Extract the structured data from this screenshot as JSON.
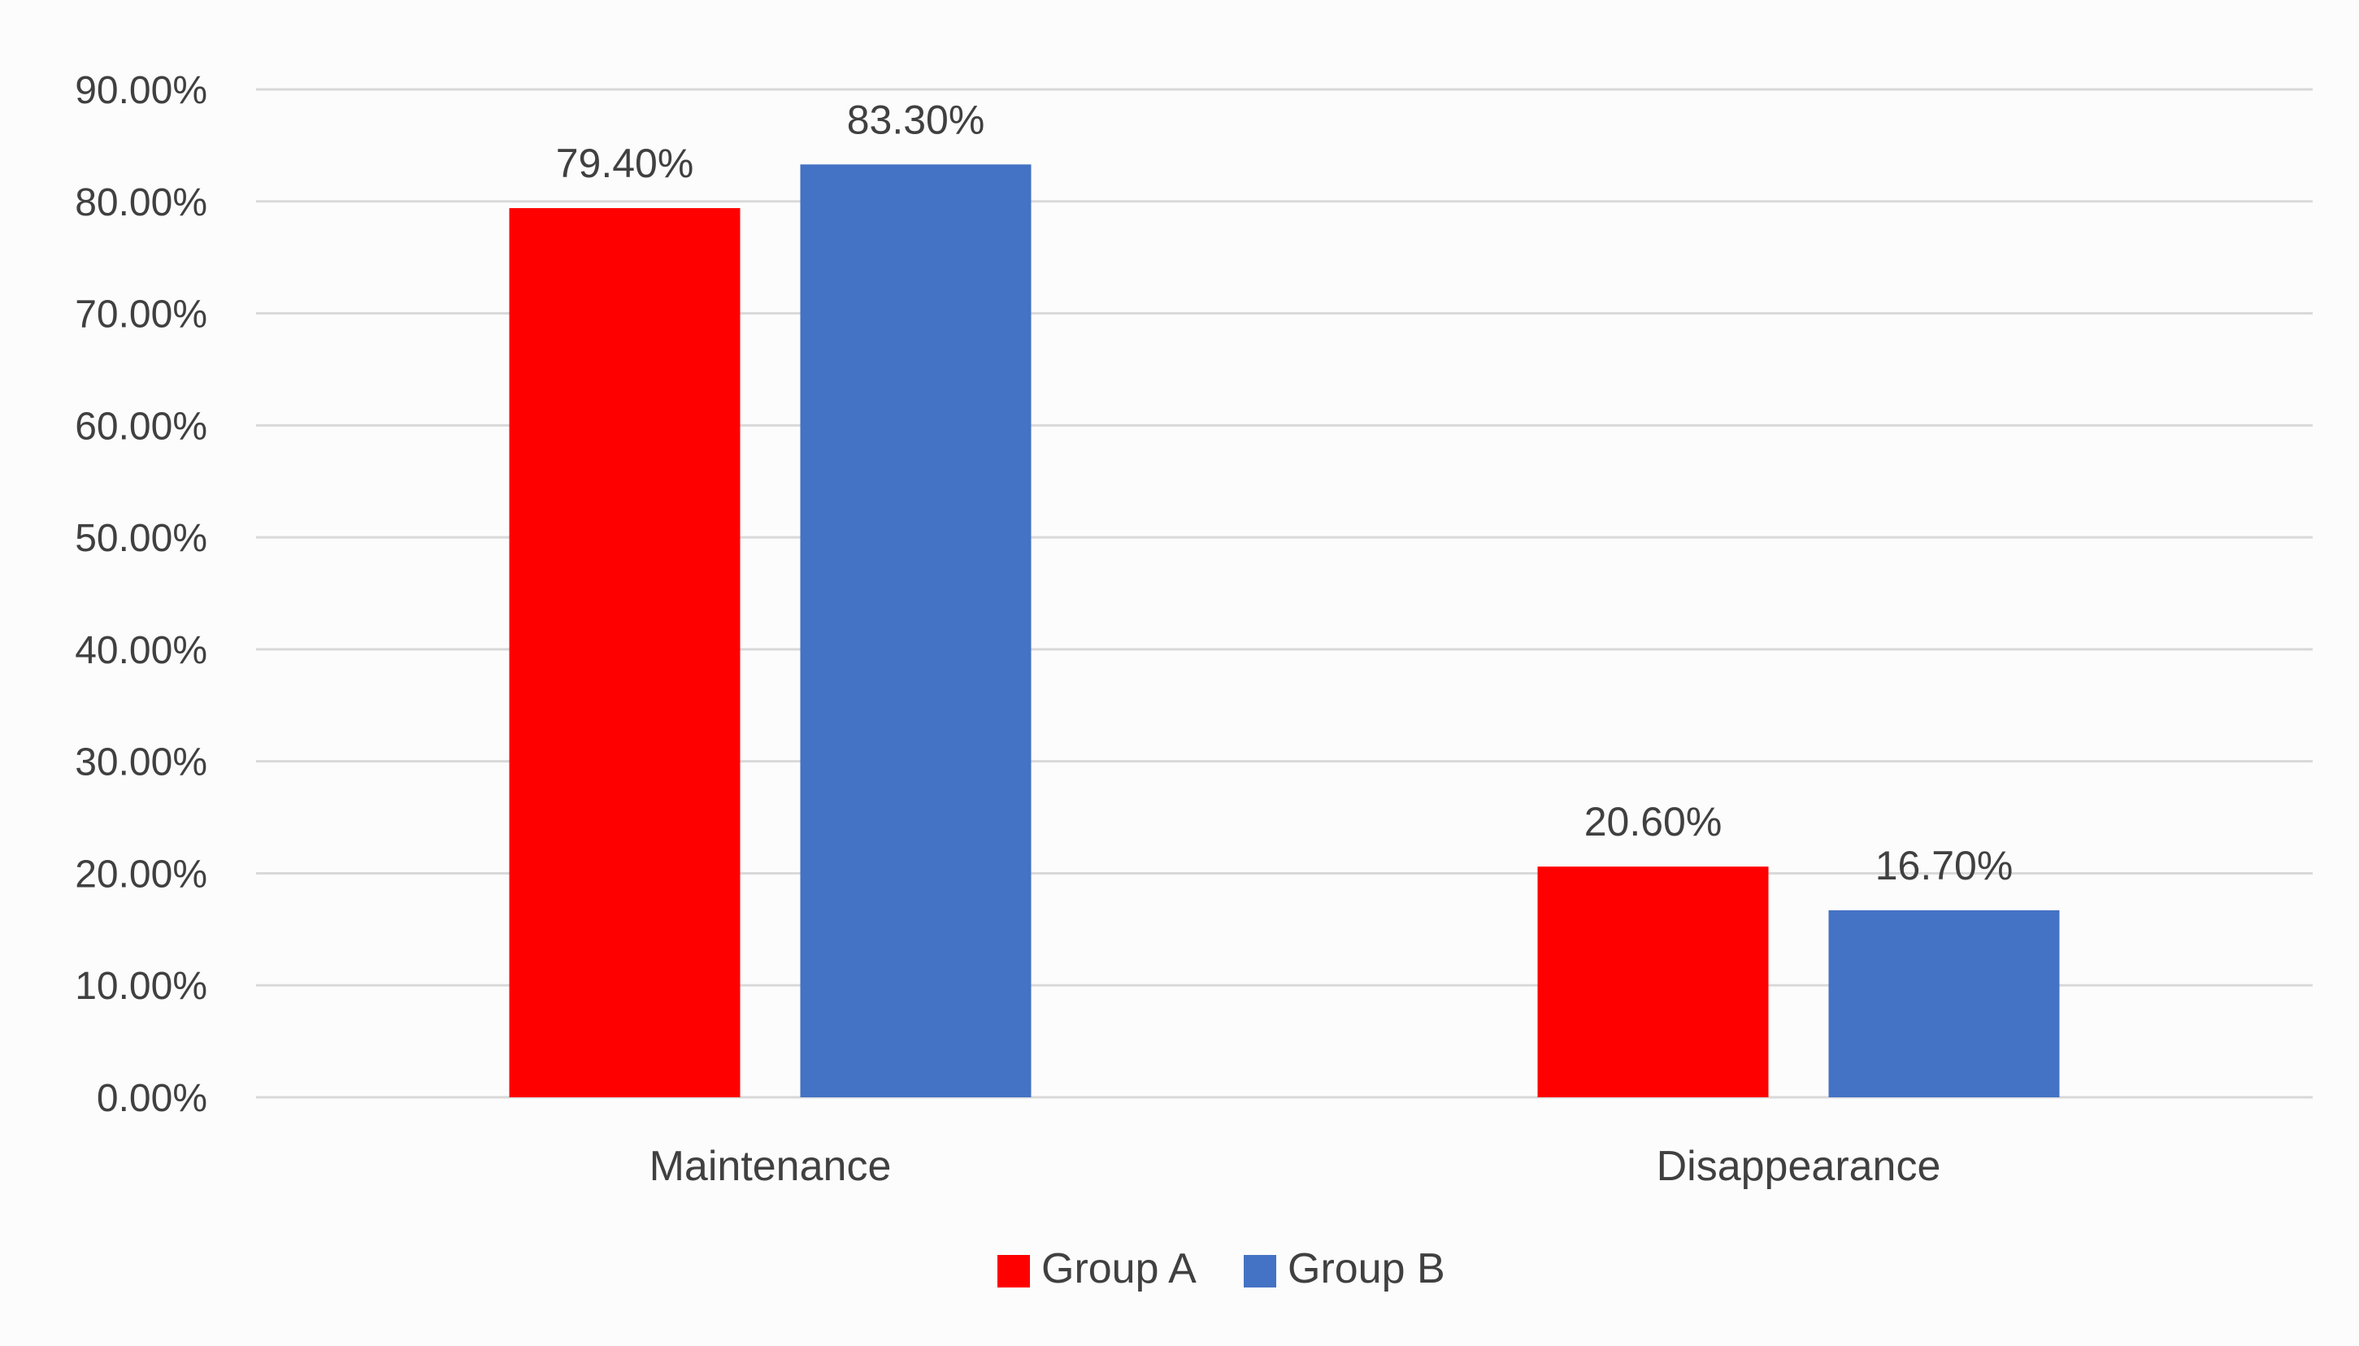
{
  "chart_data": {
    "type": "bar",
    "title": "",
    "xlabel": "",
    "ylabel": "",
    "categories": [
      "Maintenance",
      "Disappearance"
    ],
    "series": [
      {
        "name": "Group A",
        "color": "#ff0000",
        "values": [
          79.4,
          20.6
        ],
        "labels": [
          "79.40%",
          "20.60%"
        ]
      },
      {
        "name": "Group B",
        "color": "#4472c4",
        "values": [
          83.3,
          16.7
        ],
        "labels": [
          "83.30%",
          "16.70%"
        ]
      }
    ],
    "ylim": [
      0,
      90
    ],
    "yticks": [
      0,
      10,
      20,
      30,
      40,
      50,
      60,
      70,
      80,
      90
    ],
    "ytick_labels": [
      "0.00%",
      "10.00%",
      "20.00%",
      "30.00%",
      "40.00%",
      "50.00%",
      "60.00%",
      "70.00%",
      "80.00%",
      "90.00%"
    ],
    "grid": true,
    "gridline_color": "#d9d9d9",
    "legend_position": "bottom"
  }
}
